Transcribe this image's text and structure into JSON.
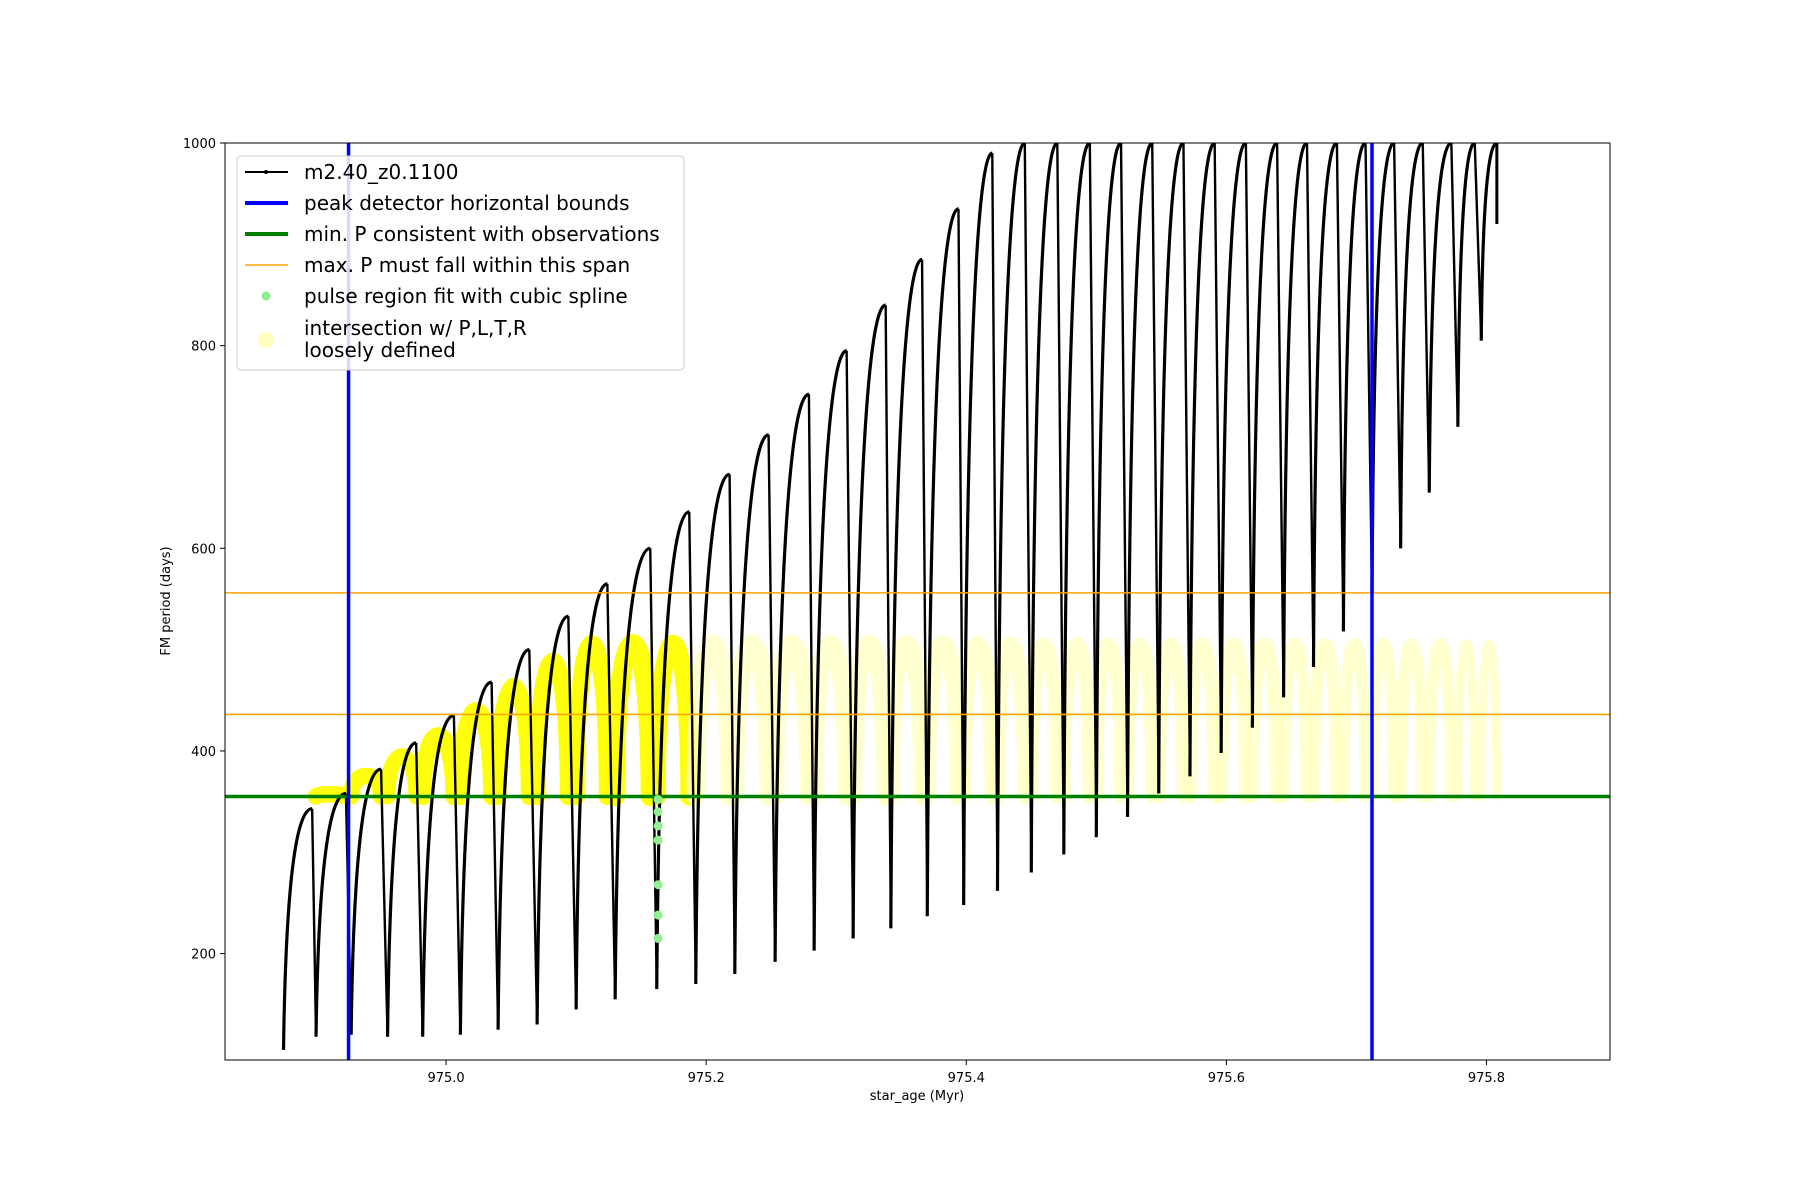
{
  "chart_data": {
    "type": "line",
    "title": "",
    "xlabel": "star_age (Myr)",
    "ylabel": "FM period (days)",
    "xlim": [
      974.83,
      975.895
    ],
    "ylim": [
      95,
      1000
    ],
    "xticks": [
      975.0,
      975.2,
      975.4,
      975.6,
      975.8
    ],
    "xtick_labels": [
      "975.0",
      "975.2",
      "975.4",
      "975.6",
      "975.8"
    ],
    "yticks": [
      200,
      400,
      600,
      800,
      1000
    ],
    "ytick_labels": [
      "200",
      "400",
      "600",
      "800",
      "1000"
    ],
    "grid": false,
    "legend_position": "upper-left",
    "legend": [
      {
        "label": "m2.40_z0.1100",
        "style": "line-marker",
        "color": "#000000"
      },
      {
        "label": "peak detector horizontal bounds",
        "style": "thick-line",
        "color": "#0000ff"
      },
      {
        "label": "min. P consistent with observations",
        "style": "thick-line",
        "color": "#008000"
      },
      {
        "label": "max. P must fall within this span",
        "style": "thin-line",
        "color": "#ffa500"
      },
      {
        "label": "pulse region fit with cubic spline",
        "style": "dot",
        "color": "#90ee90"
      },
      {
        "label": "intersection w/ P,L,T,R\nloosely defined",
        "style": "big-dot",
        "color": "#ffffc0"
      }
    ],
    "vertical_bounds": [
      974.925,
      975.712
    ],
    "min_period": 355,
    "max_period_span": [
      436,
      556
    ],
    "series": [
      {
        "name": "m2.40_z0.1100",
        "pulse_cycles": [
          {
            "start": 974.875,
            "min": 105,
            "peak": 343,
            "end": 974.897
          },
          {
            "start": 974.9,
            "min": 118,
            "peak": 358,
            "end": 974.923
          },
          {
            "start": 974.927,
            "min": 120,
            "peak": 382,
            "end": 974.95
          },
          {
            "start": 974.955,
            "min": 118,
            "peak": 408,
            "end": 974.977
          },
          {
            "start": 974.982,
            "min": 118,
            "peak": 435,
            "end": 975.006
          },
          {
            "start": 975.011,
            "min": 120,
            "peak": 468,
            "end": 975.035
          },
          {
            "start": 975.04,
            "min": 125,
            "peak": 500,
            "end": 975.064
          },
          {
            "start": 975.07,
            "min": 130,
            "peak": 533,
            "end": 975.094
          },
          {
            "start": 975.1,
            "min": 145,
            "peak": 565,
            "end": 975.124
          },
          {
            "start": 975.13,
            "min": 155,
            "peak": 600,
            "end": 975.157
          },
          {
            "start": 975.162,
            "min": 165,
            "peak": 636,
            "end": 975.187
          },
          {
            "start": 975.192,
            "min": 170,
            "peak": 673,
            "end": 975.218
          },
          {
            "start": 975.222,
            "min": 180,
            "peak": 712,
            "end": 975.248
          },
          {
            "start": 975.253,
            "min": 192,
            "peak": 752,
            "end": 975.279
          },
          {
            "start": 975.283,
            "min": 203,
            "peak": 795,
            "end": 975.308
          },
          {
            "start": 975.313,
            "min": 215,
            "peak": 840,
            "end": 975.338
          },
          {
            "start": 975.342,
            "min": 225,
            "peak": 885,
            "end": 975.366
          },
          {
            "start": 975.37,
            "min": 237,
            "peak": 935,
            "end": 975.394
          },
          {
            "start": 975.398,
            "min": 248,
            "peak": 990,
            "end": 975.42
          },
          {
            "start": 975.424,
            "min": 262,
            "peak": 1000,
            "end": 975.445
          },
          {
            "start": 975.45,
            "min": 280,
            "peak": 1000,
            "end": 975.47
          },
          {
            "start": 975.475,
            "min": 298,
            "peak": 1000,
            "end": 975.495
          },
          {
            "start": 975.5,
            "min": 315,
            "peak": 1000,
            "end": 975.519
          },
          {
            "start": 975.524,
            "min": 335,
            "peak": 1000,
            "end": 975.543
          },
          {
            "start": 975.548,
            "min": 358,
            "peak": 1000,
            "end": 975.567
          },
          {
            "start": 975.572,
            "min": 375,
            "peak": 1000,
            "end": 975.591
          },
          {
            "start": 975.596,
            "min": 398,
            "peak": 1000,
            "end": 975.615
          },
          {
            "start": 975.62,
            "min": 423,
            "peak": 1000,
            "end": 975.639
          },
          {
            "start": 975.644,
            "min": 453,
            "peak": 1000,
            "end": 975.662
          },
          {
            "start": 975.667,
            "min": 483,
            "peak": 1000,
            "end": 975.685
          },
          {
            "start": 975.69,
            "min": 518,
            "peak": 1000,
            "end": 975.707
          },
          {
            "start": 975.712,
            "min": 555,
            "peak": 1000,
            "end": 975.729
          },
          {
            "start": 975.734,
            "min": 600,
            "peak": 1000,
            "end": 975.751
          },
          {
            "start": 975.756,
            "min": 655,
            "peak": 1000,
            "end": 975.773
          },
          {
            "start": 975.778,
            "min": 720,
            "peak": 1000,
            "end": 975.791
          },
          {
            "start": 975.796,
            "min": 805,
            "peak": 1000,
            "end": 975.808
          }
        ],
        "tail": {
          "start": 975.808,
          "end_value": 920
        }
      }
    ],
    "spline_points": {
      "x": 975.163,
      "y": [
        215,
        238,
        268,
        312,
        326,
        340,
        352
      ]
    }
  }
}
